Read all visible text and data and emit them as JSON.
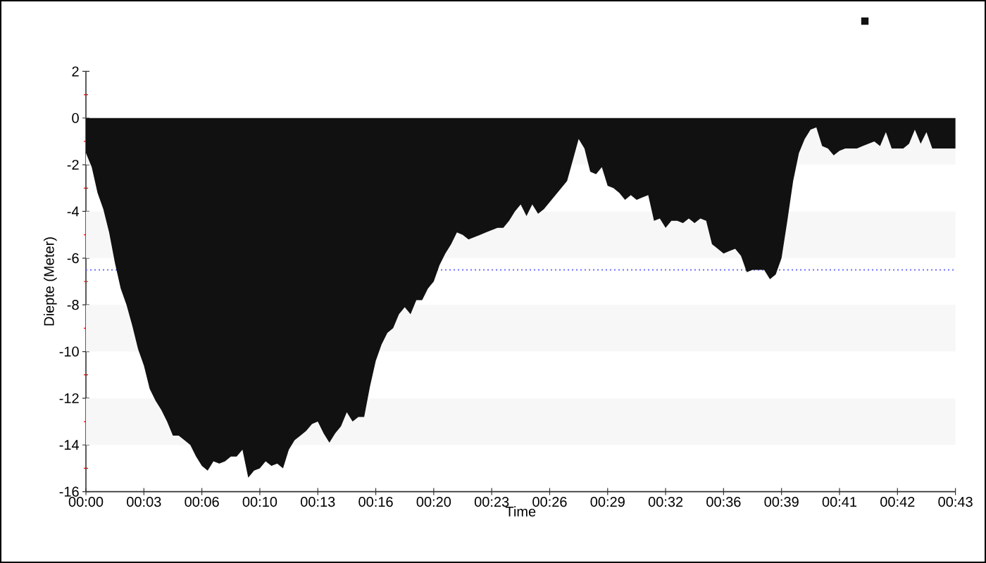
{
  "chart_data": {
    "type": "area",
    "xlabel": "Time",
    "ylabel": "Diepte (Meter)",
    "categories": [
      "00:00",
      null,
      null,
      null,
      null,
      null,
      null,
      null,
      null,
      null,
      "00:03",
      null,
      null,
      null,
      null,
      null,
      null,
      null,
      null,
      null,
      "00:06",
      null,
      null,
      null,
      null,
      null,
      null,
      null,
      null,
      null,
      "00:10",
      null,
      null,
      null,
      null,
      null,
      null,
      null,
      null,
      null,
      "00:13",
      null,
      null,
      null,
      null,
      null,
      null,
      null,
      null,
      null,
      "00:16",
      null,
      null,
      null,
      null,
      null,
      null,
      null,
      null,
      null,
      "00:20",
      null,
      null,
      null,
      null,
      null,
      null,
      null,
      null,
      null,
      "00:23",
      null,
      null,
      null,
      null,
      null,
      null,
      null,
      null,
      null,
      "00:26",
      null,
      null,
      null,
      null,
      null,
      null,
      null,
      null,
      null,
      "00:29",
      null,
      null,
      null,
      null,
      null,
      null,
      null,
      null,
      null,
      "00:32",
      null,
      null,
      null,
      null,
      null,
      null,
      null,
      null,
      null,
      "00:36",
      null,
      null,
      null,
      null,
      null,
      null,
      null,
      null,
      null,
      "00:39",
      null,
      null,
      null,
      null,
      null,
      null,
      null,
      null,
      null,
      "00:41",
      null,
      null,
      null,
      null,
      null,
      null,
      null,
      null,
      null,
      "00:42",
      null,
      null,
      null,
      null,
      null,
      null,
      null,
      null,
      null,
      "00:43"
    ],
    "values": [
      -1.5,
      -2.1,
      -3.2,
      -3.9,
      -4.9,
      -6.2,
      -7.3,
      -8.0,
      -8.9,
      -9.9,
      -10.6,
      -11.6,
      -12.1,
      -12.5,
      -13.0,
      -13.6,
      -13.6,
      -13.8,
      -14.0,
      -14.5,
      -14.9,
      -15.1,
      -14.7,
      -14.8,
      -14.7,
      -14.5,
      -14.5,
      -14.2,
      -15.4,
      -15.1,
      -15.0,
      -14.7,
      -14.9,
      -14.8,
      -15.0,
      -14.2,
      -13.8,
      -13.6,
      -13.4,
      -13.1,
      -13.0,
      -13.5,
      -13.9,
      -13.5,
      -13.2,
      -12.6,
      -13.0,
      -12.8,
      -12.8,
      -11.5,
      -10.4,
      -9.7,
      -9.2,
      -9.0,
      -8.4,
      -8.1,
      -8.4,
      -7.8,
      -7.8,
      -7.3,
      -7.0,
      -6.3,
      -5.8,
      -5.4,
      -4.9,
      -5.0,
      -5.2,
      -5.1,
      -5.0,
      -4.9,
      -4.8,
      -4.7,
      -4.7,
      -4.4,
      -4.0,
      -3.7,
      -4.2,
      -3.7,
      -4.1,
      -3.9,
      -3.6,
      -3.3,
      -3.0,
      -2.7,
      -1.8,
      -0.9,
      -1.3,
      -2.3,
      -2.4,
      -2.1,
      -2.9,
      -3.0,
      -3.2,
      -3.5,
      -3.3,
      -3.5,
      -3.4,
      -3.3,
      -4.4,
      -4.3,
      -4.7,
      -4.4,
      -4.4,
      -4.5,
      -4.3,
      -4.5,
      -4.3,
      -4.4,
      -5.4,
      -5.6,
      -5.8,
      -5.7,
      -5.6,
      -5.9,
      -6.6,
      -6.5,
      -6.5,
      -6.5,
      -6.9,
      -6.7,
      -6.0,
      -4.4,
      -2.7,
      -1.5,
      -0.9,
      -0.5,
      -0.4,
      -1.2,
      -1.3,
      -1.6,
      -1.4,
      -1.3,
      -1.3,
      -1.3,
      -1.2,
      -1.1,
      -1.0,
      -1.2,
      -0.6,
      -1.3,
      -1.3,
      -1.3,
      -1.1,
      -0.5,
      -1.1,
      -0.6,
      -1.3,
      -1.3,
      -1.3,
      -1.3,
      -1.3
    ],
    "color": "#111111",
    "ylim": [
      -16,
      2
    ],
    "yticks": [
      -16,
      -14,
      -12,
      -10,
      -8,
      -6,
      -4,
      -2,
      0,
      2
    ],
    "bands": [
      {
        "axis": "y",
        "from": -2,
        "to": 0,
        "color": "#f7f7f7"
      },
      {
        "axis": "y",
        "from": -6,
        "to": -4,
        "color": "#f7f7f7"
      },
      {
        "axis": "y",
        "from": -10,
        "to": -8,
        "color": "#f7f7f7"
      },
      {
        "axis": "y",
        "from": -14,
        "to": -12,
        "color": "#f7f7f7"
      }
    ],
    "ref_lines": [
      {
        "axis": "y",
        "value": -6.5,
        "color": "#6f6fff",
        "line_style": "dotted"
      }
    ]
  }
}
